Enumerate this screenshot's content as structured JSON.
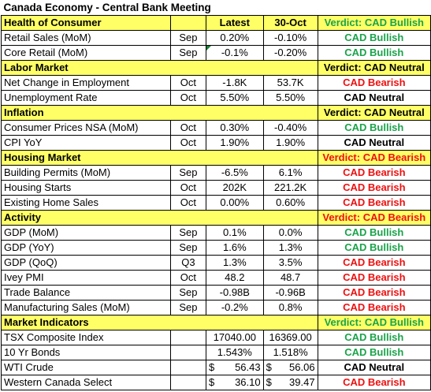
{
  "title": "Canada Economy - Central Bank Meeting",
  "header": {
    "category": "Health of Consumer",
    "latest": "Latest",
    "previous": "30-Oct",
    "verdict": "Verdict: CAD Bullish",
    "verdict_type": "bull"
  },
  "sections": [
    {
      "rows": [
        {
          "name": "Retail Sales (MoM)",
          "period": "Sep",
          "latest": "0.20%",
          "previous": "-0.10%",
          "verdict": "CAD Bullish",
          "type": "bull"
        },
        {
          "name": "Core Retail (MoM)",
          "period": "Sep",
          "latest": "-0.1%",
          "previous": "-0.20%",
          "verdict": "CAD Bullish",
          "type": "bull"
        }
      ]
    },
    {
      "title": "Labor Market",
      "verdict": "Verdict: CAD Neutral",
      "verdict_type": "neut",
      "rows": [
        {
          "name": "Net Change in Employment",
          "period": "Oct",
          "latest": "-1.8K",
          "previous": "53.7K",
          "verdict": "CAD Bearish",
          "type": "bear"
        },
        {
          "name": "Unemployment Rate",
          "period": "Oct",
          "latest": "5.50%",
          "previous": "5.50%",
          "verdict": "CAD Neutral",
          "type": "neut"
        }
      ]
    },
    {
      "title": "Inflation",
      "verdict": "Verdict: CAD Neutral",
      "verdict_type": "neut",
      "rows": [
        {
          "name": "Consumer Prices NSA (MoM)",
          "period": "Oct",
          "latest": "0.30%",
          "previous": "-0.40%",
          "verdict": "CAD Bullish",
          "type": "bull"
        },
        {
          "name": "CPI YoY",
          "period": "Oct",
          "latest": "1.90%",
          "previous": "1.90%",
          "verdict": "CAD Neutral",
          "type": "neut"
        }
      ]
    },
    {
      "title": "Housing Market",
      "verdict": "Verdict: CAD Bearish",
      "verdict_type": "bear",
      "rows": [
        {
          "name": "Building Permits (MoM)",
          "period": "Sep",
          "latest": "-6.5%",
          "previous": "6.1%",
          "verdict": "CAD Bearish",
          "type": "bear"
        },
        {
          "name": "Housing Starts",
          "period": "Oct",
          "latest": "202K",
          "previous": "221.2K",
          "verdict": "CAD Bearish",
          "type": "bear"
        },
        {
          "name": "Existing Home Sales",
          "period": "Oct",
          "latest": "0.00%",
          "previous": "0.60%",
          "verdict": "CAD Bearish",
          "type": "bear"
        }
      ]
    },
    {
      "title": "Activity",
      "verdict": "Verdict: CAD Bearish",
      "verdict_type": "bear",
      "rows": [
        {
          "name": "GDP (MoM)",
          "period": "Sep",
          "latest": "0.1%",
          "previous": "0.0%",
          "verdict": "CAD Bullish",
          "type": "bull"
        },
        {
          "name": "GDP (YoY)",
          "period": "Sep",
          "latest": "1.6%",
          "previous": "1.3%",
          "verdict": "CAD Bullish",
          "type": "bull"
        },
        {
          "name": "GDP (QoQ)",
          "period": "Q3",
          "latest": "1.3%",
          "previous": "3.5%",
          "verdict": "CAD Bearish",
          "type": "bear"
        },
        {
          "name": "Ivey PMI",
          "period": "Oct",
          "latest": "48.2",
          "previous": "48.7",
          "verdict": "CAD Bearish",
          "type": "bear"
        },
        {
          "name": "Trade Balance",
          "period": "Sep",
          "latest": "-0.98B",
          "previous": "-0.96B",
          "verdict": "CAD Bearish",
          "type": "bear"
        },
        {
          "name": "Manufacturing Sales (MoM)",
          "period": "Sep",
          "latest": "-0.2%",
          "previous": "0.8%",
          "verdict": "CAD Bearish",
          "type": "bear"
        }
      ]
    },
    {
      "title": "Market Indicators",
      "verdict": "Verdict: CAD Bullish",
      "verdict_type": "bull",
      "rows": [
        {
          "name": "TSX Composite Index",
          "period": "",
          "latest": "17040.00",
          "previous": "16369.00",
          "verdict": "CAD Bullish",
          "type": "bull"
        },
        {
          "name": "10 Yr Bonds",
          "period": "",
          "latest": "1.543%",
          "previous": "1.518%",
          "verdict": "CAD Bullish",
          "type": "bull"
        },
        {
          "name": "WTI Crude",
          "period": "",
          "latest": "56.43",
          "previous": "56.06",
          "currency": "$",
          "verdict": "CAD Neutral",
          "type": "neut"
        },
        {
          "name": "Western Canada Select",
          "period": "",
          "latest": "36.10",
          "previous": "39.47",
          "currency": "$",
          "verdict": "CAD Bearish",
          "type": "bear"
        }
      ]
    }
  ]
}
